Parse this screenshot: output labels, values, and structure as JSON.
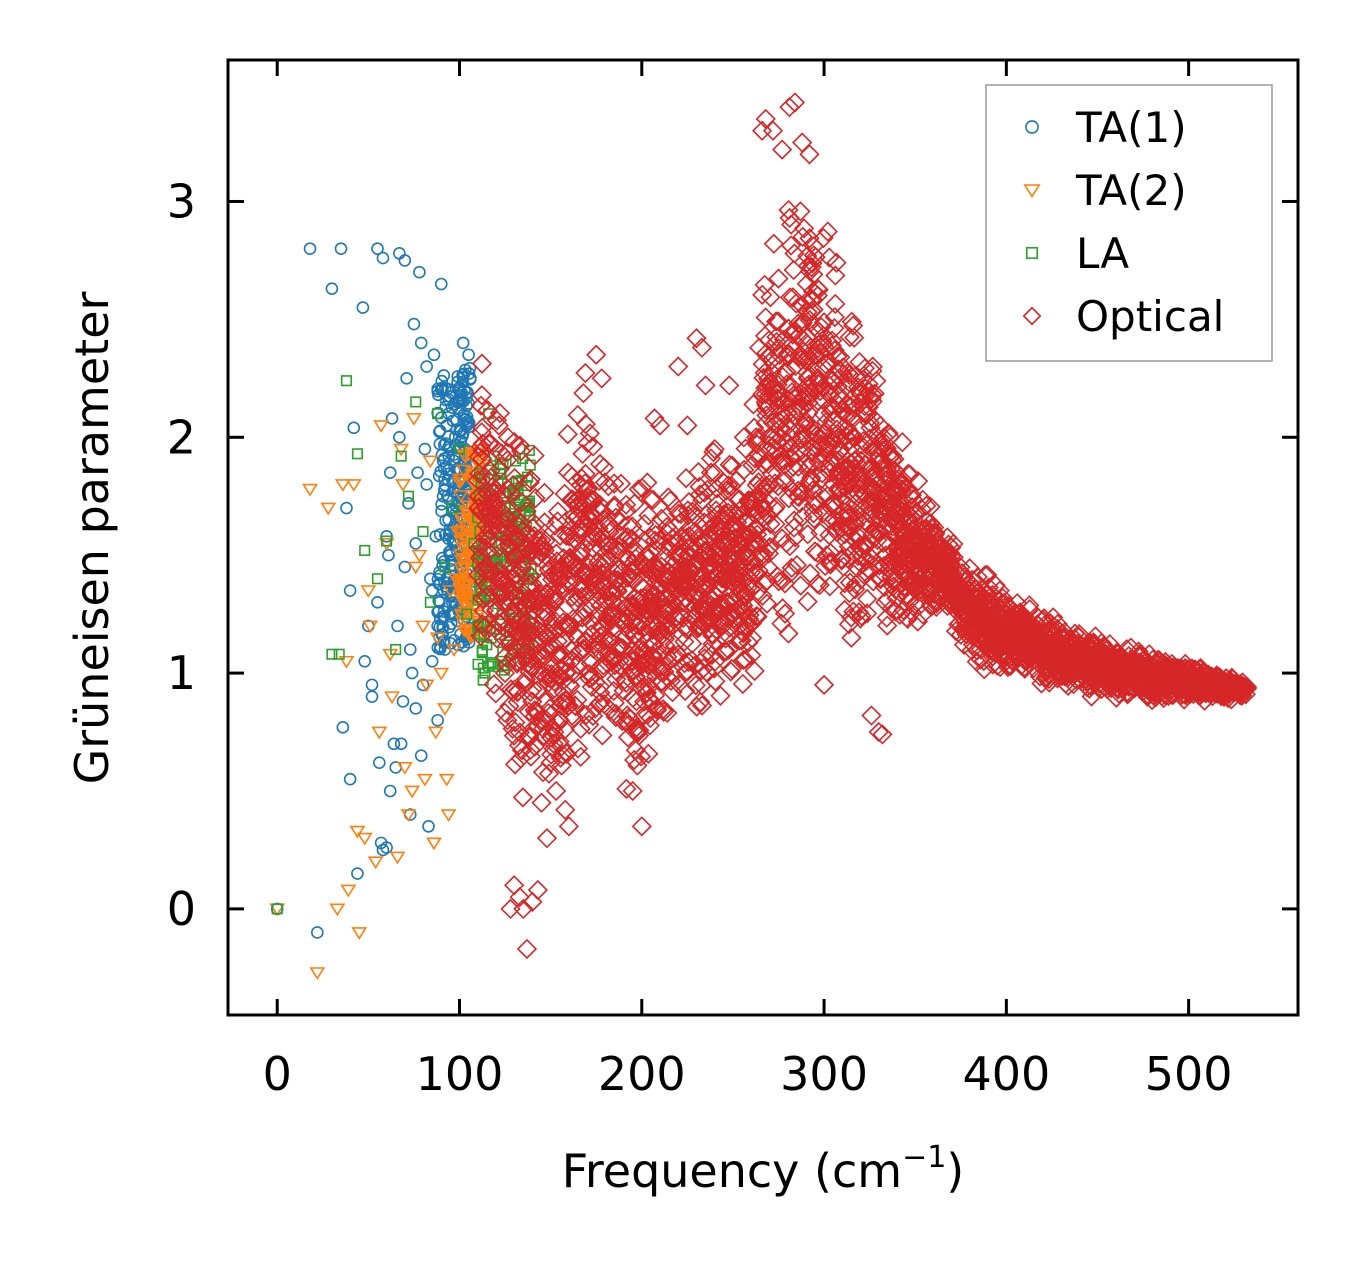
{
  "chart_data": {
    "type": "scatter",
    "title": "",
    "xlabel": "Frequency (cm",
    "xlabel_sup": "−1",
    "xlabel_close": ")",
    "ylabel": "Grüneisen parameter",
    "xlim": [
      -27,
      560
    ],
    "ylim": [
      -0.45,
      3.6
    ],
    "xticks": [
      0,
      100,
      200,
      300,
      400,
      500
    ],
    "yticks": [
      0,
      1,
      2,
      3
    ],
    "xtick_labels": [
      "0",
      "100",
      "200",
      "300",
      "400",
      "500"
    ],
    "ytick_labels": [
      "0",
      "1",
      "2",
      "3"
    ],
    "grid": false,
    "legend_position": "top-right",
    "series": [
      {
        "name": "TA(1)",
        "marker": "circle",
        "color": "#1f77b4",
        "x": [
          0,
          18,
          22,
          30,
          35,
          38,
          40,
          42,
          44,
          47,
          50,
          52,
          55,
          57,
          58,
          60,
          62,
          63,
          65,
          67,
          68,
          70,
          72,
          73,
          75,
          77,
          78,
          80,
          82,
          83,
          85,
          87,
          88,
          90,
          92,
          93,
          95,
          96,
          97,
          98,
          99,
          100,
          101,
          102,
          103,
          104,
          105,
          106,
          52,
          55,
          60,
          62,
          66,
          69,
          71,
          74,
          76,
          79,
          81,
          84,
          86,
          89,
          91,
          94,
          58,
          64,
          70,
          76,
          82,
          88,
          94,
          100,
          36,
          40,
          48,
          56,
          61,
          67,
          73,
          79,
          85,
          91,
          97,
          103
        ],
        "y": [
          0.0,
          2.8,
          -0.1,
          2.63,
          2.8,
          1.7,
          0.55,
          2.04,
          0.15,
          2.55,
          1.2,
          0.9,
          2.8,
          0.28,
          2.76,
          1.58,
          0.5,
          2.08,
          0.6,
          2.78,
          0.7,
          2.75,
          1.72,
          0.4,
          2.48,
          1.85,
          2.7,
          0.95,
          2.3,
          0.35,
          1.05,
          1.58,
          0.8,
          2.65,
          1.1,
          2.05,
          1.5,
          1.25,
          1.9,
          1.6,
          1.78,
          2.2,
          1.45,
          2.4,
          1.85,
          2.05,
          2.35,
          2.25,
          0.95,
          1.3,
          0.26,
          1.85,
          1.2,
          0.88,
          2.25,
          1.0,
          1.55,
          0.65,
          1.95,
          1.4,
          2.35,
          1.3,
          1.75,
          2.1,
          0.25,
          0.7,
          1.45,
          0.85,
          1.8,
          1.2,
          1.65,
          2.15,
          0.77,
          1.35,
          1.05,
          0.62,
          1.5,
          2.0,
          1.1,
          2.4,
          1.35,
          1.9,
          1.62,
          1.95
        ]
      },
      {
        "name": "TA(2)",
        "marker": "triangle-down",
        "color": "#ff7f0e",
        "x": [
          0,
          18,
          22,
          28,
          33,
          36,
          39,
          42,
          45,
          48,
          51,
          54,
          57,
          60,
          63,
          66,
          69,
          72,
          75,
          78,
          81,
          84,
          87,
          90,
          93,
          95,
          97,
          99,
          101,
          103,
          105,
          107,
          109,
          111,
          113,
          115,
          117,
          38,
          44,
          50,
          56,
          62,
          68,
          74,
          80,
          86,
          92,
          98,
          104,
          110,
          70,
          76,
          82,
          88,
          94
        ],
        "y": [
          0.0,
          1.78,
          -0.27,
          1.7,
          0.0,
          1.8,
          0.08,
          1.8,
          -0.1,
          0.3,
          1.2,
          0.2,
          2.05,
          1.55,
          0.9,
          0.22,
          1.8,
          0.4,
          2.08,
          1.5,
          0.55,
          1.9,
          0.75,
          1.0,
          0.55,
          1.35,
          1.1,
          1.6,
          1.25,
          1.45,
          1.3,
          1.5,
          1.55,
          1.6,
          1.65,
          1.7,
          1.75,
          1.05,
          0.33,
          1.35,
          0.75,
          1.08,
          1.95,
          0.5,
          1.2,
          0.28,
          0.85,
          1.4,
          1.55,
          1.7,
          0.6,
          1.45,
          0.95,
          1.15,
          0.4
        ]
      },
      {
        "name": "LA",
        "marker": "square",
        "color": "#2ca02c",
        "x": [
          0,
          30,
          34,
          38,
          44,
          48,
          55,
          60,
          65,
          68,
          72,
          76,
          80,
          84,
          88,
          92,
          96,
          100,
          104,
          108,
          110,
          112,
          114,
          116,
          118,
          120,
          122,
          124,
          126,
          128,
          130,
          132,
          134,
          136,
          138,
          140,
          113,
          115,
          117,
          119,
          121,
          123,
          125
        ],
        "y": [
          0.0,
          1.08,
          1.08,
          2.24,
          1.93,
          1.52,
          1.4,
          1.56,
          1.1,
          1.92,
          1.75,
          2.15,
          1.6,
          1.3,
          2.1,
          1.45,
          1.7,
          1.95,
          1.25,
          1.55,
          1.2,
          1.8,
          1.0,
          2.1,
          1.35,
          1.6,
          1.5,
          1.75,
          1.45,
          1.7,
          1.55,
          1.6,
          1.5,
          1.45,
          1.42,
          1.4,
          0.97,
          1.12,
          1.22,
          1.92,
          1.68,
          1.5,
          1.62
        ]
      },
      {
        "name": "Optical",
        "marker": "diamond",
        "color": "#d62728",
        "envelope": {
          "x": [
            110,
            130,
            150,
            170,
            185,
            200,
            220,
            240,
            260,
            270,
            280,
            285,
            300,
            320,
            340,
            360,
            365,
            380,
            400,
            420,
            440,
            460,
            480,
            500,
            520,
            532
          ],
          "y_low": [
            1.05,
            0.4,
            0.3,
            0.5,
            0.45,
            0.4,
            0.7,
            0.75,
            0.9,
            1.0,
            1.0,
            1.05,
            1.0,
            1.0,
            1.1,
            1.2,
            1.3,
            1.0,
            0.95,
            0.92,
            0.9,
            0.88,
            0.85,
            0.88,
            0.88,
            0.9
          ],
          "y_high": [
            2.45,
            2.1,
            2.0,
            2.3,
            2.2,
            1.9,
            2.0,
            2.0,
            2.1,
            3.05,
            3.35,
            3.42,
            3.1,
            2.6,
            2.1,
            1.75,
            1.6,
            1.5,
            1.4,
            1.3,
            1.2,
            1.15,
            1.12,
            1.05,
            1.0,
            0.97
          ]
        },
        "outliers_x": [
          128,
          130,
          133,
          135,
          137,
          140,
          143,
          145,
          148,
          150,
          152,
          153,
          155,
          158,
          160,
          165,
          175,
          178,
          195,
          200,
          207,
          210,
          220,
          225,
          230,
          233,
          235,
          240,
          248,
          256,
          266,
          268,
          272,
          277,
          281,
          284,
          288,
          292,
          326,
          330,
          332,
          300,
          315
        ],
        "outliers_y": [
          0.0,
          0.1,
          0.05,
          0.0,
          -0.17,
          0.03,
          0.08,
          0.45,
          0.3,
          0.62,
          0.75,
          0.5,
          0.8,
          0.42,
          0.35,
          0.68,
          2.35,
          2.25,
          0.5,
          0.35,
          2.08,
          2.05,
          2.3,
          2.05,
          2.42,
          2.38,
          2.22,
          1.95,
          2.22,
          2.0,
          3.3,
          3.35,
          3.3,
          3.22,
          3.4,
          3.42,
          3.25,
          3.2,
          0.82,
          0.75,
          0.74,
          0.95,
          1.15
        ]
      }
    ]
  }
}
